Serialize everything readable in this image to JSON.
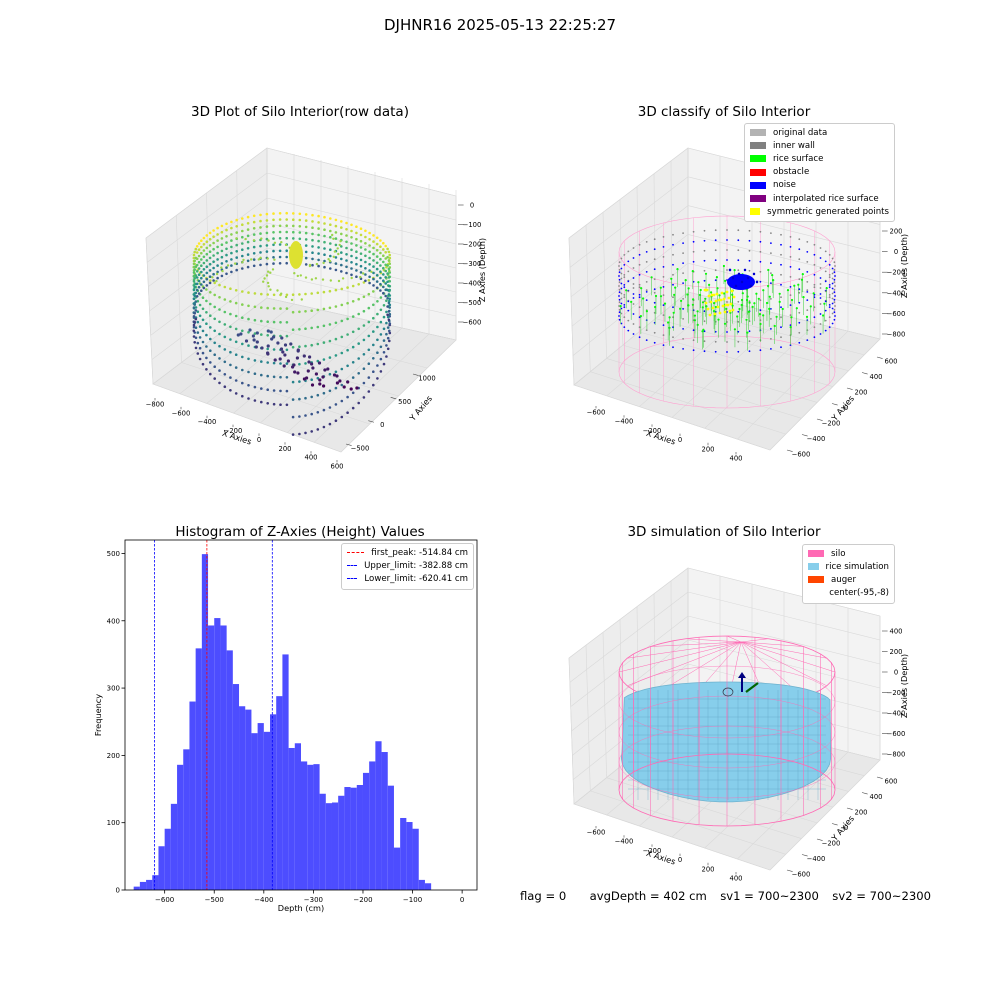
{
  "figure_title": "DJHNR16 2025-05-13 22:25:27",
  "footer": {
    "flag": "flag = 0",
    "avg": "avgDepth = 402 cm",
    "sv1": "sv1 = 700~2300",
    "sv2": "sv2 = 700~2300"
  },
  "colors": {
    "histogram": "#4d4dff",
    "first_peak": "#ff0000",
    "limits": "#0000ff",
    "silo": "#ff69b4",
    "rice_simulation": "#87ceeb",
    "auger": "#ff4500",
    "pane": "#f2f2f2"
  },
  "chart_data": [
    {
      "type": "scatter",
      "projection": "3d",
      "title": "3D Plot of Silo Interior(row data)",
      "xlabel": "X Axies",
      "ylabel": "Y Axies",
      "zlabel": "Z Axies (Depth)",
      "x_ticks": [
        "−800",
        "−600",
        "−400",
        "−200",
        "0",
        "200",
        "400",
        "600"
      ],
      "y_ticks": [
        "−500",
        "0",
        "500",
        "1000"
      ],
      "z_ticks": [
        "0",
        "−100",
        "−200",
        "−300",
        "−400",
        "−500",
        "−600"
      ],
      "colormap": "viridis",
      "zlim": [
        -650,
        20
      ]
    },
    {
      "type": "scatter",
      "projection": "3d",
      "title": "3D classify of Silo Interior",
      "xlabel": "X Axies",
      "ylabel": "Y Axies",
      "zlabel": "Z Axies (Depth)",
      "x_ticks": [
        "−600",
        "−400",
        "−200",
        "0",
        "200",
        "400"
      ],
      "y_ticks": [
        "−600",
        "−400",
        "−200",
        "0",
        "200",
        "400",
        "600"
      ],
      "z_ticks": [
        "200",
        "0",
        "−200",
        "−400",
        "−600",
        "−800"
      ],
      "legend_position": "top-right",
      "legend": [
        {
          "label": "original data",
          "color": "#b3b3b3"
        },
        {
          "label": "inner wall",
          "color": "#808080"
        },
        {
          "label": "rice surface",
          "color": "#00ff00"
        },
        {
          "label": "obstacle",
          "color": "#ff0000"
        },
        {
          "label": "noise",
          "color": "#0000ff"
        },
        {
          "label": "interpolated rice surface",
          "color": "#800080"
        },
        {
          "label": "symmetric generated points",
          "color": "#ffff00"
        }
      ]
    },
    {
      "type": "bar",
      "title": "Histogram of Z-Axies (Height) Values",
      "xlabel": "Depth (cm)",
      "ylabel": "Frequency",
      "xlim": [
        -680,
        30
      ],
      "ylim": [
        0,
        520
      ],
      "x_ticks": [
        -600,
        -500,
        -400,
        -300,
        -200,
        -100,
        0
      ],
      "y_ticks": [
        0,
        100,
        200,
        300,
        400,
        500
      ],
      "bin_width": 12.5,
      "bin_start": -662.5,
      "values": [
        5,
        12,
        15,
        22,
        65,
        91,
        128,
        186,
        209,
        280,
        359,
        499,
        393,
        404,
        393,
        356,
        306,
        273,
        268,
        233,
        248,
        235,
        261,
        288,
        350,
        211,
        218,
        191,
        186,
        187,
        143,
        129,
        130,
        140,
        153,
        152,
        156,
        174,
        191,
        221,
        205,
        155,
        63,
        107,
        101,
        91,
        15,
        10
      ],
      "vlines": [
        {
          "label": "first_peak: -514.84 cm",
          "x": -514.84,
          "color": "#ff0000"
        },
        {
          "label": "Upper_limit: -382.88 cm",
          "x": -382.88,
          "color": "#0000ff"
        },
        {
          "label": "Lower_limit: -620.41 cm",
          "x": -620.41,
          "color": "#0000ff"
        }
      ],
      "legend_position": "top-right"
    },
    {
      "type": "scatter",
      "projection": "3d",
      "title": "3D simulation of Silo Interior",
      "xlabel": "X Axies",
      "ylabel": "Y Axies",
      "zlabel": "Z Axies (Depth)",
      "x_ticks": [
        "−600",
        "−400",
        "−200",
        "0",
        "200",
        "400"
      ],
      "y_ticks": [
        "−600",
        "−400",
        "−200",
        "0",
        "200",
        "400",
        "600"
      ],
      "z_ticks": [
        "400",
        "200",
        "0",
        "−200",
        "−400",
        "−600",
        "−800"
      ],
      "legend_position": "top-right",
      "legend": [
        {
          "label": "silo",
          "color": "#ff69b4"
        },
        {
          "label": "rice simulation",
          "color": "#87ceeb"
        },
        {
          "label": "auger",
          "color": "#ff4500"
        },
        {
          "label": "center(-95,-8)",
          "color": "none"
        }
      ]
    }
  ]
}
